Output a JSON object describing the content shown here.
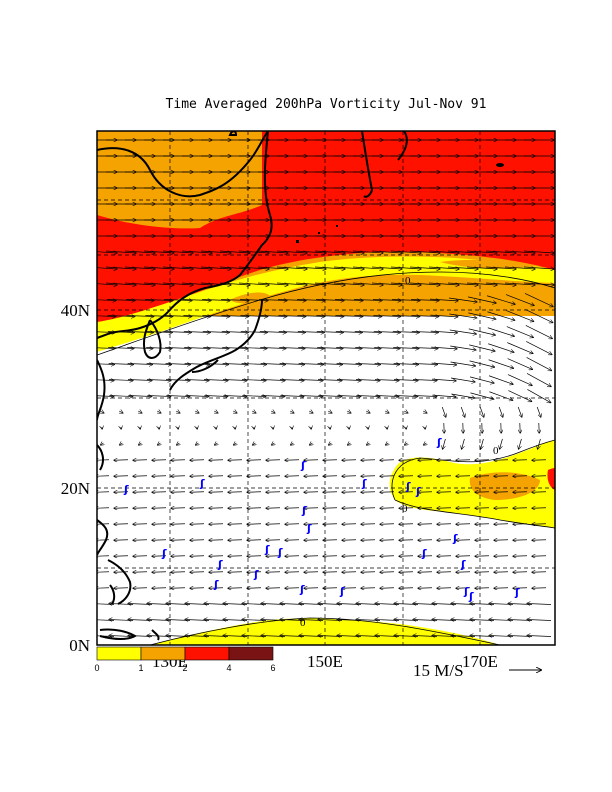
{
  "title": "Time Averaged 200hPa Vorticity Jul-Nov 91",
  "y_axis_labels": [
    "40N",
    "20N",
    "0N"
  ],
  "x_axis_labels": [
    "130E",
    "150E",
    "170E"
  ],
  "colorbar": {
    "ticks": [
      "0",
      "1",
      "2",
      "4",
      "6"
    ],
    "colors": [
      "#ffff00",
      "#f5a300",
      "#ff1100",
      "#7a1414"
    ]
  },
  "vector_reference": {
    "label": "15 M/S"
  },
  "contour_labels": [
    "0",
    "0",
    "0",
    "0"
  ],
  "storm_symbol": "ʃ",
  "colors": {
    "yellow": "#ffff00",
    "orange": "#f5a300",
    "red": "#ff1100",
    "storm": "#0000ff"
  }
}
